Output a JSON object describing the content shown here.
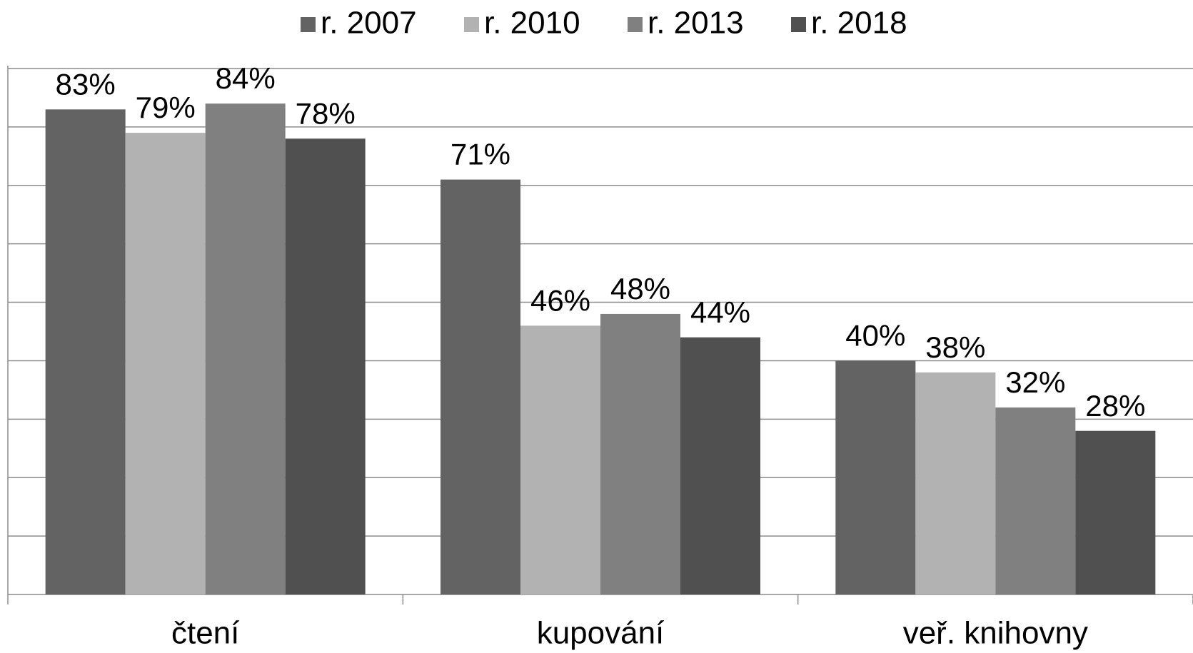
{
  "chart_data": {
    "type": "bar",
    "categories": [
      "čtení",
      "kupování",
      "veř. knihovny"
    ],
    "series": [
      {
        "name": "r. 2007",
        "color": "#636363",
        "values": [
          83,
          71,
          40
        ],
        "value_labels": [
          "83%",
          "71%",
          "40%"
        ]
      },
      {
        "name": "r. 2010",
        "color": "#b2b2b2",
        "values": [
          79,
          46,
          38
        ],
        "value_labels": [
          "79%",
          "46%",
          "38%"
        ]
      },
      {
        "name": "r. 2013",
        "color": "#808080",
        "values": [
          84,
          48,
          32
        ],
        "value_labels": [
          "84%",
          "48%",
          "32%"
        ]
      },
      {
        "name": "r. 2018",
        "color": "#505050",
        "values": [
          78,
          44,
          28
        ],
        "value_labels": [
          "78%",
          "44%",
          "28%"
        ]
      }
    ],
    "ylim": [
      0,
      90
    ],
    "yticks": [
      0,
      10,
      20,
      30,
      40,
      50,
      60,
      70,
      80,
      90
    ],
    "grid": true,
    "legend": "top"
  }
}
